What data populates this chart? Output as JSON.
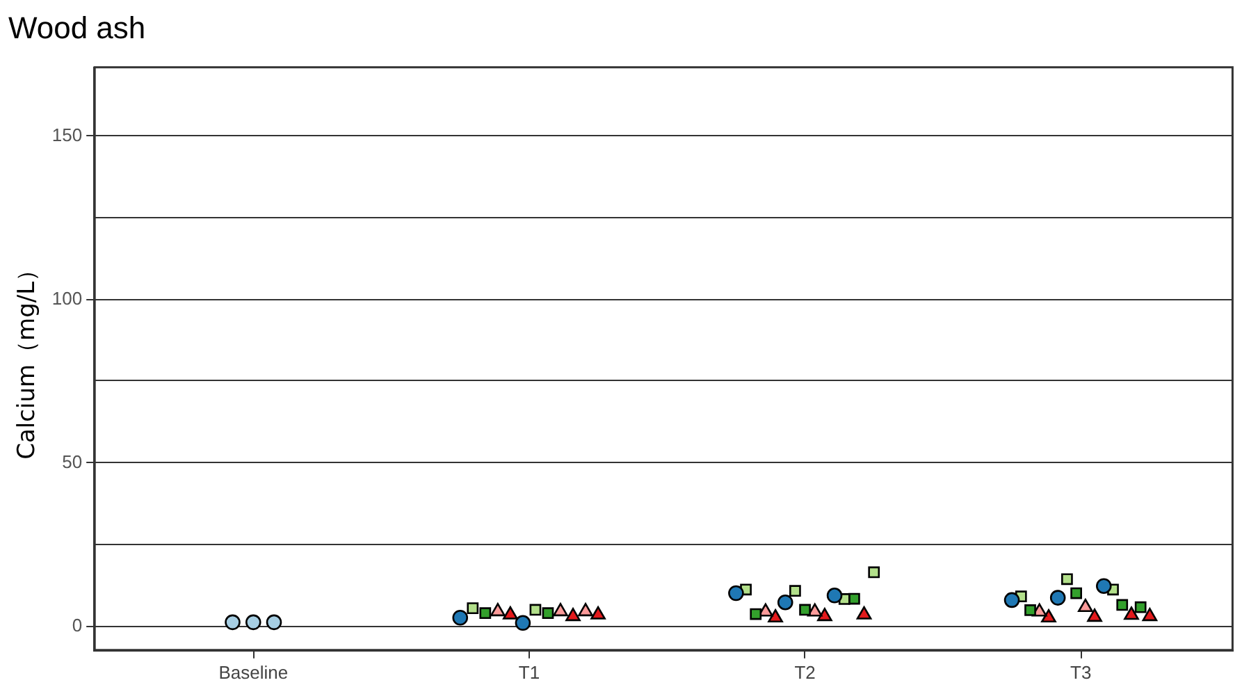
{
  "chart_data": {
    "type": "scatter",
    "title": "Wood ash",
    "ylabel": "Calcium（mg/L）",
    "categories": [
      "Baseline",
      "T1",
      "T2",
      "T3"
    ],
    "ylim": [
      -7.3,
      171
    ],
    "yticks": [
      0,
      {
        "value": 25,
        "label": null
      },
      50,
      {
        "value": 75,
        "label": null
      },
      100,
      {
        "value": 125,
        "label": null
      },
      150
    ],
    "grid": "y",
    "legend": false,
    "series": [
      {
        "color": "#a6cee3",
        "marker": "circle",
        "x": [
          "Baseline",
          "Baseline",
          "Baseline"
        ],
        "values": [
          1.2,
          1.2,
          1.2
        ]
      },
      {
        "color": "#1f78b4",
        "marker": "circle",
        "x": [
          "T1",
          "T1",
          "T2",
          "T2",
          "T2",
          "T3",
          "T3",
          "T3"
        ],
        "values": [
          2.6,
          1,
          10.1,
          7.3,
          9.4,
          8,
          8.7,
          12.3
        ]
      },
      {
        "color": "#b2df8a",
        "marker": "square",
        "x": [
          "T1",
          "T1",
          "T2",
          "T2",
          "T2",
          "T2",
          "T3",
          "T3",
          "T3"
        ],
        "values": [
          5.5,
          5,
          11.2,
          10.8,
          8.3,
          16.5,
          9.1,
          14.4,
          11.2
        ]
      },
      {
        "color": "#33a02c",
        "marker": "square",
        "x": [
          "T1",
          "T1",
          "T2",
          "T2",
          "T2",
          "T3",
          "T3",
          "T3",
          "T3"
        ],
        "values": [
          4,
          4,
          3.7,
          5,
          8.4,
          4.9,
          10.1,
          6.5,
          5.8
        ]
      },
      {
        "color": "#fb9a99",
        "marker": "triangle",
        "x": [
          "T1",
          "T1",
          "T1",
          "T2",
          "T2",
          "T3",
          "T3"
        ],
        "values": [
          4.5,
          4.5,
          4.5,
          4.4,
          4.4,
          4.4,
          5.8
        ]
      },
      {
        "color": "#e31a1c",
        "marker": "triangle",
        "x": [
          "T1",
          "T1",
          "T1",
          "T2",
          "T2",
          "T2",
          "T3",
          "T3",
          "T3",
          "T3"
        ],
        "values": [
          3.5,
          3,
          3.5,
          2.6,
          3,
          3.5,
          2.6,
          2.8,
          3.4,
          3
        ]
      }
    ]
  }
}
